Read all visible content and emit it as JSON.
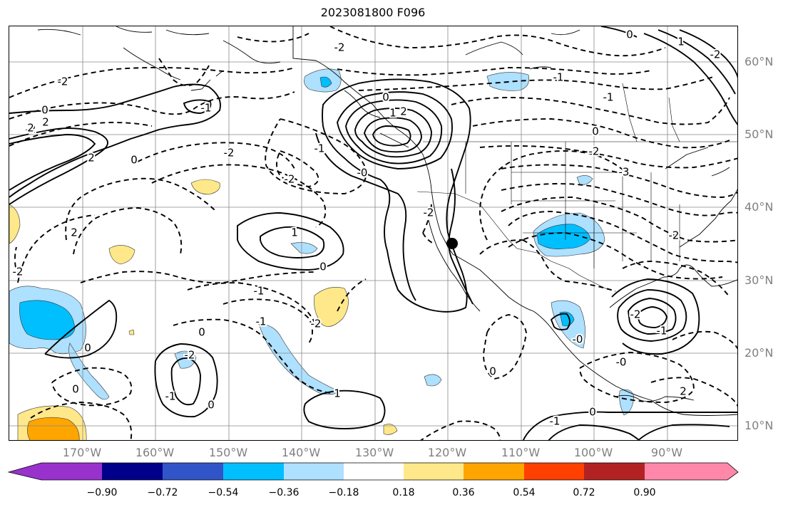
{
  "title": "2023081800 F096",
  "lat_labels": [
    "60°N",
    "50°N",
    "40°N",
    "30°N",
    "20°N",
    "10°N"
  ],
  "lon_labels": [
    "170°W",
    "160°W",
    "150°W",
    "140°W",
    "130°W",
    "120°W",
    "110°W",
    "100°W",
    "90°W"
  ],
  "colorbar": {
    "ticks": [
      "−0.90",
      "−0.72",
      "−0.54",
      "−0.36",
      "−0.18",
      "0.18",
      "0.36",
      "0.54",
      "0.72",
      "0.90"
    ],
    "colors": [
      "#9932cc",
      "#00008b",
      "#3155c8",
      "#00bfff",
      "#aee0ff",
      "#ffffff",
      "#ffe88a",
      "#ffa500",
      "#ff4000",
      "#b22222",
      "#ff88aa"
    ]
  },
  "contour_labels": [
    "-2",
    "-2",
    "0",
    "2",
    "2",
    "-1",
    "0",
    "-2",
    "-2",
    "2",
    "2",
    "-2",
    "-1",
    "1",
    "0",
    "-1",
    "-2",
    "-2",
    "0",
    "-1",
    "-2",
    "-1",
    "0",
    "1",
    "0",
    "0",
    "-0",
    "0",
    "1",
    "2",
    "-2",
    "-1",
    "-1",
    "0",
    "-2",
    "-3",
    "-2",
    "-2",
    "0",
    "1",
    "-2",
    "-1",
    "-0",
    "0",
    "-0",
    "2",
    "-1",
    "0"
  ]
}
